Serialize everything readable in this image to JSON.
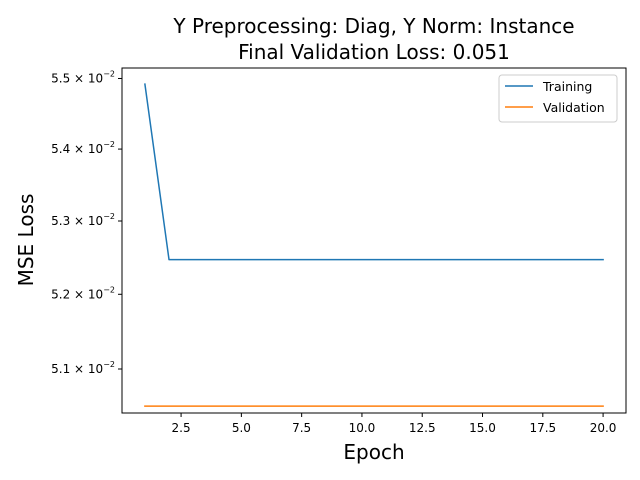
{
  "chart_data": {
    "type": "line",
    "title_line1": "Y Preprocessing: Diag, Y Norm: Instance",
    "title_line2": "Final Validation Loss: 0.051",
    "xlabel": "Epoch",
    "ylabel": "MSE Loss",
    "yscale": "log",
    "xlim": [
      0.05,
      20.95
    ],
    "ylim": [
      0.05042,
      0.05515
    ],
    "x_ticks": [
      {
        "value": 2.5,
        "label": "2.5"
      },
      {
        "value": 5.0,
        "label": "5.0"
      },
      {
        "value": 7.5,
        "label": "7.5"
      },
      {
        "value": 10.0,
        "label": "10.0"
      },
      {
        "value": 12.5,
        "label": "12.5"
      },
      {
        "value": 15.0,
        "label": "15.0"
      },
      {
        "value": 17.5,
        "label": "17.5"
      },
      {
        "value": 20.0,
        "label": "20.0"
      }
    ],
    "y_ticks": [
      {
        "value": 0.055,
        "mantissa": "5.5",
        "base": "10",
        "exponent": "−2"
      },
      {
        "value": 0.054,
        "mantissa": "5.4",
        "base": "10",
        "exponent": "−2"
      },
      {
        "value": 0.053,
        "mantissa": "5.3",
        "base": "10",
        "exponent": "−2"
      },
      {
        "value": 0.052,
        "mantissa": "5.2",
        "base": "10",
        "exponent": "−2"
      },
      {
        "value": 0.051,
        "mantissa": "5.1",
        "base": "10",
        "exponent": "−2"
      }
    ],
    "x": [
      1,
      2,
      3,
      4,
      5,
      6,
      7,
      8,
      9,
      10,
      11,
      12,
      13,
      14,
      15,
      16,
      17,
      18,
      19,
      20
    ],
    "series": [
      {
        "name": "Training",
        "color": "#1f77b4",
        "values": [
          0.05492,
          0.05247,
          0.05247,
          0.05247,
          0.05247,
          0.05247,
          0.05247,
          0.05247,
          0.05247,
          0.05247,
          0.05247,
          0.05247,
          0.05247,
          0.05247,
          0.05247,
          0.05247,
          0.05247,
          0.05247,
          0.05247,
          0.05247
        ]
      },
      {
        "name": "Validation",
        "color": "#ff7f0e",
        "values": [
          0.05051,
          0.05051,
          0.05051,
          0.05051,
          0.05051,
          0.05051,
          0.05051,
          0.05051,
          0.05051,
          0.05051,
          0.05051,
          0.05051,
          0.05051,
          0.05051,
          0.05051,
          0.05051,
          0.05051,
          0.05051,
          0.05051,
          0.05051
        ]
      }
    ],
    "legend_position": "top-right",
    "grid": false
  }
}
